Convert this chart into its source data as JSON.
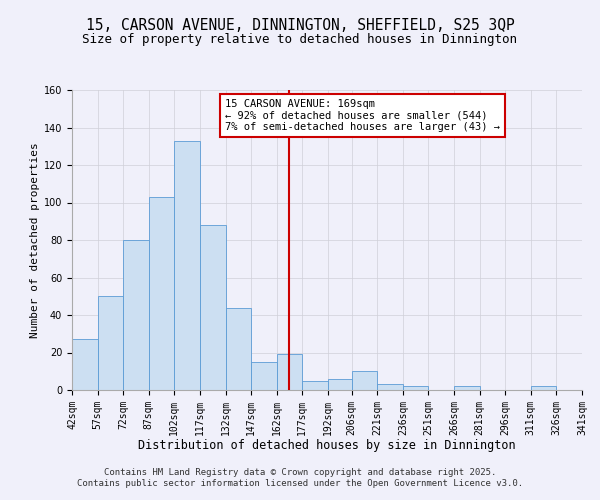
{
  "title": "15, CARSON AVENUE, DINNINGTON, SHEFFIELD, S25 3QP",
  "subtitle": "Size of property relative to detached houses in Dinnington",
  "xlabel": "Distribution of detached houses by size in Dinnington",
  "ylabel": "Number of detached properties",
  "bin_edges": [
    42,
    57,
    72,
    87,
    102,
    117,
    132,
    147,
    162,
    177,
    192,
    206,
    221,
    236,
    251,
    266,
    281,
    296,
    311,
    326,
    341
  ],
  "bin_heights": [
    27,
    50,
    80,
    103,
    133,
    88,
    44,
    15,
    19,
    5,
    6,
    10,
    3,
    2,
    0,
    2,
    0,
    0,
    2,
    0
  ],
  "bar_facecolor": "#ccdff2",
  "bar_edgecolor": "#5b9bd5",
  "vline_x": 169,
  "vline_color": "#cc0000",
  "ylim": [
    0,
    160
  ],
  "yticks": [
    0,
    20,
    40,
    60,
    80,
    100,
    120,
    140,
    160
  ],
  "annotation_title": "15 CARSON AVENUE: 169sqm",
  "annotation_line1": "← 92% of detached houses are smaller (544)",
  "annotation_line2": "7% of semi-detached houses are larger (43) →",
  "annotation_box_color": "#cc0000",
  "grid_color": "#d0d0d8",
  "background_color": "#f0f0fa",
  "footer_line1": "Contains HM Land Registry data © Crown copyright and database right 2025.",
  "footer_line2": "Contains public sector information licensed under the Open Government Licence v3.0.",
  "title_fontsize": 10.5,
  "subtitle_fontsize": 9,
  "xlabel_fontsize": 8.5,
  "ylabel_fontsize": 8,
  "tick_fontsize": 7,
  "annotation_fontsize": 7.5,
  "footer_fontsize": 6.5
}
